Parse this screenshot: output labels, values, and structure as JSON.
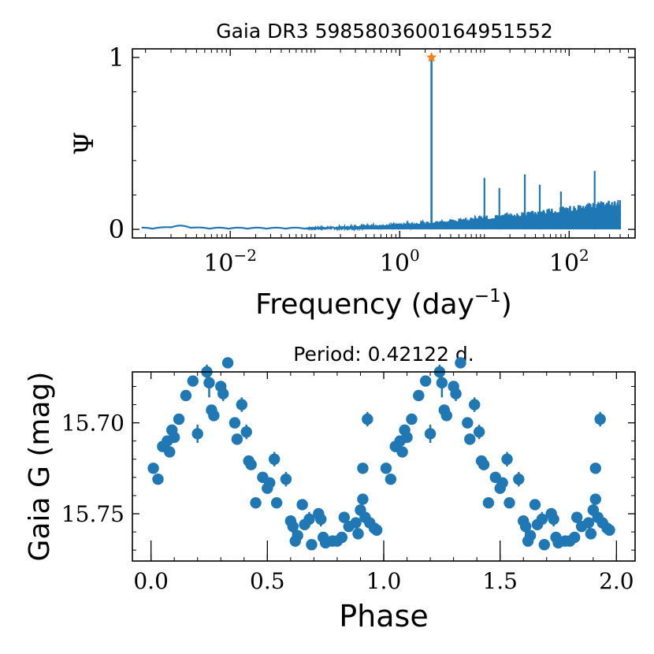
{
  "colors": {
    "series": "#1f77b4",
    "peak": "#ff7f0e",
    "axis": "#000000"
  },
  "chart_data": [
    {
      "type": "line",
      "title": "Gaia DR3 5985803600164951552",
      "xlabel": "Frequency (day",
      "xlabel_exp": "−1",
      "xlabel_close": ")",
      "ylabel": "Ψ",
      "xscale": "log",
      "xlim": [
        0.0007,
        600
      ],
      "ylim": [
        -0.05,
        1.05
      ],
      "xticks": [
        {
          "value": 0.01,
          "base": "10",
          "exp": "−2"
        },
        {
          "value": 1,
          "base": "10",
          "exp": "0"
        },
        {
          "value": 100,
          "base": "10",
          "exp": "2"
        }
      ],
      "yticks": [
        {
          "value": 0,
          "label": "0"
        },
        {
          "value": 1,
          "label": "1"
        }
      ],
      "peak": {
        "frequency": 2.374,
        "power": 1.0,
        "marker": "star"
      },
      "notable_peaks": [
        {
          "frequency": 10,
          "power": 0.3
        },
        {
          "frequency": 15,
          "power": 0.24
        },
        {
          "frequency": 30,
          "power": 0.32
        },
        {
          "frequency": 45,
          "power": 0.26
        },
        {
          "frequency": 80,
          "power": 0.22
        },
        {
          "frequency": 200,
          "power": 0.34
        }
      ]
    },
    {
      "type": "scatter",
      "title": "Period: 0.42122 d.",
      "xlabel": "Phase",
      "ylabel": "Gaia G (mag)",
      "xlim": [
        -0.08,
        2.08
      ],
      "ylim": [
        15.776,
        15.672
      ],
      "y_inverted": true,
      "xticks": [
        {
          "value": 0.0,
          "label": "0.0"
        },
        {
          "value": 0.5,
          "label": "0.5"
        },
        {
          "value": 1.0,
          "label": "1.0"
        },
        {
          "value": 1.5,
          "label": "1.5"
        },
        {
          "value": 2.0,
          "label": "2.0"
        }
      ],
      "yticks": [
        {
          "value": 15.7,
          "label": "15.70"
        },
        {
          "value": 15.75,
          "label": "15.75"
        }
      ],
      "points": [
        [
          0.01,
          15.725,
          0.002
        ],
        [
          0.03,
          15.731,
          0.002
        ],
        [
          0.05,
          15.713,
          0.002
        ],
        [
          0.07,
          15.71,
          0.002
        ],
        [
          0.08,
          15.716,
          0.002
        ],
        [
          0.09,
          15.704,
          0.002
        ],
        [
          0.1,
          15.708,
          0.002
        ],
        [
          0.12,
          15.698,
          0.002
        ],
        [
          0.15,
          15.685,
          0.002
        ],
        [
          0.18,
          15.677,
          0.002
        ],
        [
          0.2,
          15.706,
          0.005
        ],
        [
          0.24,
          15.672,
          0.004
        ],
        [
          0.25,
          15.678,
          0.008
        ],
        [
          0.26,
          15.693,
          0.002
        ],
        [
          0.27,
          15.696,
          0.002
        ],
        [
          0.3,
          15.68,
          0.002
        ],
        [
          0.31,
          15.684,
          0.004
        ],
        [
          0.33,
          15.667,
          0.002
        ],
        [
          0.36,
          15.7,
          0.002
        ],
        [
          0.37,
          15.709,
          0.002
        ],
        [
          0.39,
          15.69,
          0.004
        ],
        [
          0.41,
          15.705,
          0.004
        ],
        [
          0.42,
          15.721,
          0.002
        ],
        [
          0.43,
          15.723,
          0.002
        ],
        [
          0.45,
          15.744,
          0.002
        ],
        [
          0.48,
          15.73,
          0.002
        ],
        [
          0.5,
          15.736,
          0.002
        ],
        [
          0.51,
          15.733,
          0.002
        ],
        [
          0.53,
          15.72,
          0.004
        ],
        [
          0.54,
          15.744,
          0.002
        ],
        [
          0.58,
          15.731,
          0.004
        ],
        [
          0.6,
          15.754,
          0.002
        ],
        [
          0.61,
          15.757,
          0.004
        ],
        [
          0.62,
          15.765,
          0.002
        ],
        [
          0.63,
          15.762,
          0.002
        ],
        [
          0.65,
          15.745,
          0.002
        ],
        [
          0.66,
          15.756,
          0.002
        ],
        [
          0.68,
          15.753,
          0.004
        ],
        [
          0.69,
          15.767,
          0.002
        ],
        [
          0.72,
          15.75,
          0.002
        ],
        [
          0.73,
          15.753,
          0.004
        ],
        [
          0.74,
          15.763,
          0.002
        ],
        [
          0.75,
          15.766,
          0.002
        ],
        [
          0.78,
          15.765,
          0.002
        ],
        [
          0.8,
          15.765,
          0.002
        ],
        [
          0.82,
          15.763,
          0.002
        ],
        [
          0.83,
          15.752,
          0.002
        ],
        [
          0.85,
          15.757,
          0.002
        ],
        [
          0.88,
          15.755,
          0.002
        ],
        [
          0.89,
          15.761,
          0.002
        ],
        [
          0.9,
          15.748,
          0.002
        ],
        [
          0.91,
          15.742,
          0.002
        ],
        [
          0.91,
          15.725,
          0.002
        ],
        [
          0.92,
          15.752,
          0.002
        ],
        [
          0.93,
          15.698,
          0.004
        ],
        [
          0.94,
          15.755,
          0.002
        ],
        [
          0.96,
          15.758,
          0.002
        ],
        [
          0.97,
          15.759,
          0.002
        ]
      ]
    }
  ]
}
